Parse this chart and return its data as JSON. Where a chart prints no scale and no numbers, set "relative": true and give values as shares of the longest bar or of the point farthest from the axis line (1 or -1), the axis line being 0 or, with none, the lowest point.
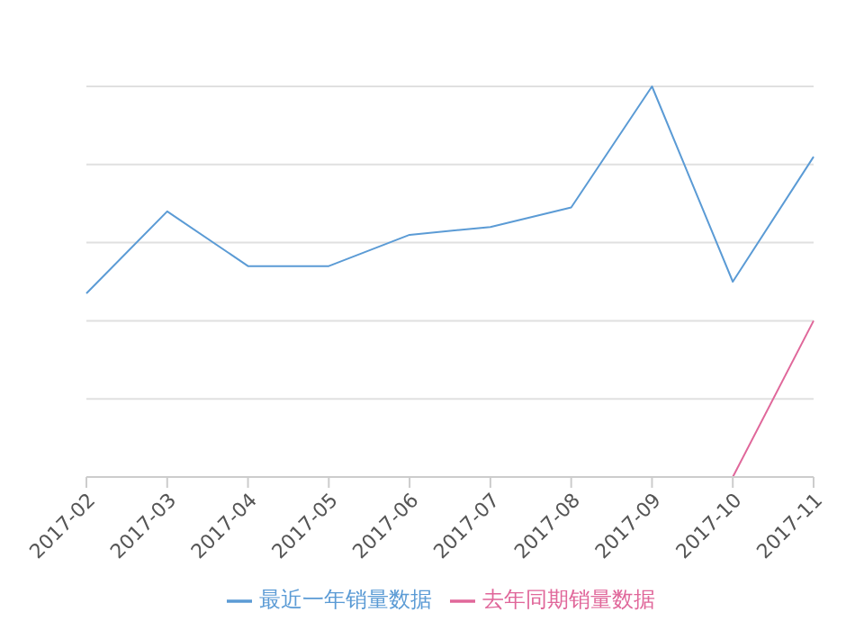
{
  "chart_data": {
    "type": "line",
    "relative": true,
    "categories": [
      "2017-02",
      "2017-03",
      "2017-04",
      "2017-05",
      "2017-06",
      "2017-07",
      "2017-08",
      "2017-09",
      "2017-10",
      "2017-11"
    ],
    "series": [
      {
        "name": "最近一年销量数据",
        "color": "#5b9bd5",
        "values": [
          0.47,
          0.68,
          0.54,
          0.54,
          0.62,
          0.64,
          0.69,
          1,
          0.5,
          0.82
        ]
      },
      {
        "name": "去年同期销量数据",
        "color": "#e0679a",
        "values": [
          null,
          null,
          null,
          null,
          null,
          null,
          null,
          null,
          0,
          0.4
        ]
      }
    ],
    "grid": "y",
    "legend": "bottom",
    "marker": "none",
    "line_style": "solid"
  }
}
